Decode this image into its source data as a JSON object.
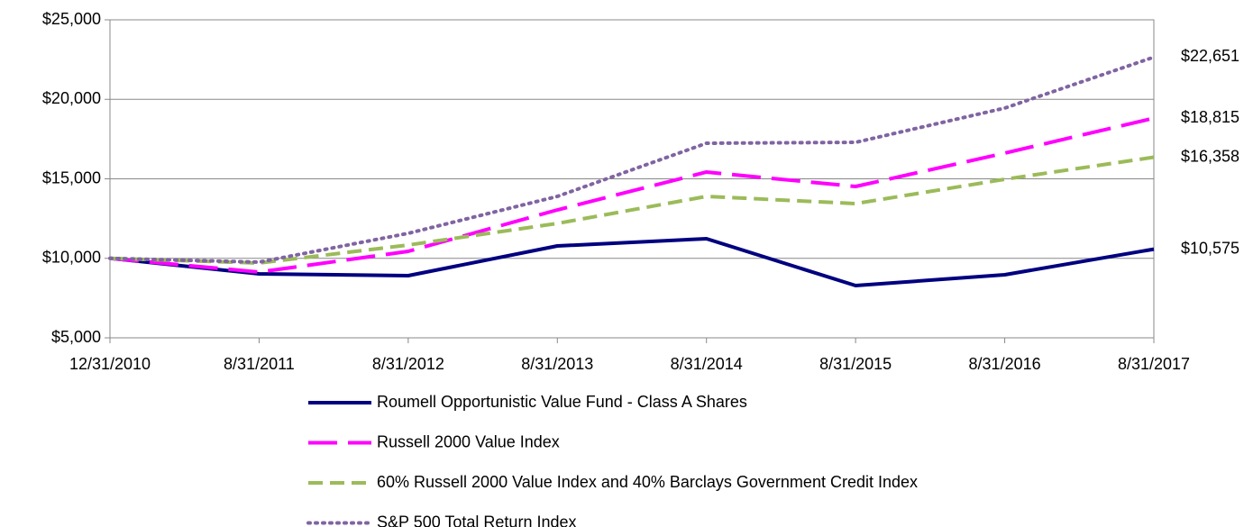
{
  "chart_data": {
    "type": "line",
    "categories": [
      "12/31/2010",
      "8/31/2011",
      "8/31/2012",
      "8/31/2013",
      "8/31/2014",
      "8/31/2015",
      "8/31/2016",
      "8/31/2017"
    ],
    "series": [
      {
        "name": "Roumell Opportunistic Value Fund - Class A Shares",
        "color": "#000080",
        "style": "solid",
        "values": [
          10000,
          9023,
          8910,
          10779,
          11232,
          8286,
          8966,
          10575
        ],
        "value_labels": [
          null,
          null,
          null,
          null,
          null,
          null,
          null,
          "$10,575"
        ]
      },
      {
        "name": "Russell 2000 Value Index",
        "color": "#ff00ff",
        "style": "longdash",
        "values": [
          10000,
          9136,
          10439,
          13045,
          15425,
          14518,
          16615,
          18815
        ],
        "value_labels": [
          null,
          null,
          null,
          null,
          null,
          null,
          null,
          "$18,815"
        ]
      },
      {
        "name": "60% Russell 2000 Value Index and 40% Barclays Government Credit Index",
        "color": "#9bbb59",
        "style": "dash",
        "values": [
          10000,
          9703,
          10836,
          12195,
          13895,
          13442,
          14972,
          16358
        ],
        "value_labels": [
          null,
          null,
          null,
          null,
          null,
          null,
          null,
          "$16,358"
        ]
      },
      {
        "name": "S&P 500 Total Return Index",
        "color": "#8064a2",
        "style": "dot",
        "values": [
          10000,
          9759,
          11572,
          13895,
          17238,
          17295,
          19448,
          22651
        ],
        "value_labels": [
          null,
          null,
          null,
          null,
          null,
          null,
          null,
          "$22,651"
        ]
      }
    ],
    "ylim": [
      5000,
      25000
    ],
    "yticks": [
      {
        "value": 5000,
        "label": "$5,000"
      },
      {
        "value": 10000,
        "label": "$10,000"
      },
      {
        "value": 15000,
        "label": "$15,000"
      },
      {
        "value": 20000,
        "label": "$20,000"
      },
      {
        "value": 25000,
        "label": "$25,000"
      }
    ],
    "grid": true,
    "legend": "bottom"
  }
}
